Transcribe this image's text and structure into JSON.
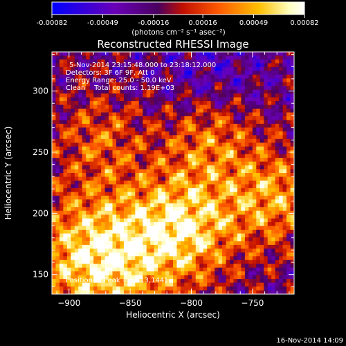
{
  "colorbar": {
    "tick_labels": [
      "-0.00082",
      "-0.00049",
      "-0.00016",
      "0.00016",
      "0.00049",
      "0.00082"
    ],
    "units_label": "(photons cm⁻² s⁻¹ asec⁻²)",
    "range": [
      -0.00082,
      0.00082
    ],
    "colormap": [
      "#0000ff",
      "#6a00b8",
      "#4a0060",
      "#c21000",
      "#ff5a00",
      "#ffc000",
      "#ffffc0",
      "#ffffff"
    ]
  },
  "chart_data": {
    "type": "heatmap",
    "title": "Reconstructed RHESSI Image",
    "xlabel": "Heliocentric X (arcsec)",
    "ylabel": "Heliocentric Y (arcsec)",
    "x_ticks": [
      -900,
      -850,
      -800,
      -750
    ],
    "y_ticks": [
      150,
      200,
      250,
      300
    ],
    "xlim": [
      -914,
      -716
    ],
    "ylim": [
      134,
      332
    ],
    "annotations": [
      "5-Nov-2014 23:15:48.000 to 23:18:12.000",
      "Detectors: 3F 6F 9F, Att 0",
      "Energy Range: 25.0 - 50.0 keV",
      "Clean    Total counts: 1.19E+03"
    ],
    "peak_label": "Position of Peak = [-813,144]"
  },
  "footer": {
    "date": "16-Nov-2014 14:09"
  }
}
